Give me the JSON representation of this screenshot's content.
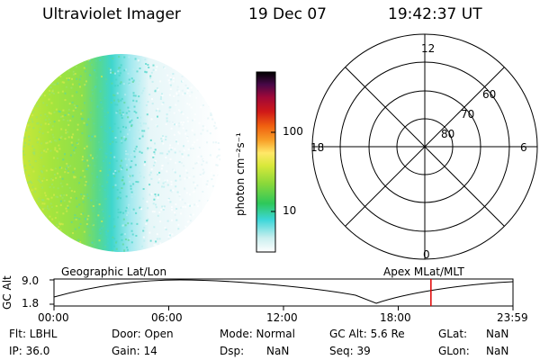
{
  "header": {
    "instrument": "Ultraviolet Imager",
    "date": "19 Dec 07",
    "time": "19:42:37 UT"
  },
  "colorbar": {
    "unit_label": "photon cm⁻²s⁻¹",
    "ticks": [
      "100",
      "10"
    ]
  },
  "polar_plot": {
    "mlt_labels": [
      "12",
      "18",
      "6",
      "0"
    ],
    "lat_labels": [
      "60",
      "70",
      "80"
    ]
  },
  "altitude_plot": {
    "y_label": "GC Alt",
    "y_ticks": [
      "9.0",
      "1.8"
    ],
    "left_title": "Geographic Lat/Lon",
    "right_title": "Apex  MLat/MLT",
    "x_ticks": [
      "00:00",
      "06:00",
      "12:00",
      "18:00",
      "23:59"
    ],
    "marker_time_hours": 19.71
  },
  "info": {
    "filter": "Flt: LBHL",
    "door": "Door: Open",
    "mode": "Mode: Normal",
    "gc_alt": "GC Alt: 5.6 Re",
    "glat_label": "GLat:",
    "glat_value": "NaN",
    "ip": "IP: 36.0",
    "gain": "Gain: 14",
    "dsp_label": "Dsp:",
    "dsp_value": "NaN",
    "seq": "Seq: 39",
    "glon_label": "GLon:",
    "glon_value": "NaN"
  },
  "colors": {
    "marker": "#e00000"
  }
}
